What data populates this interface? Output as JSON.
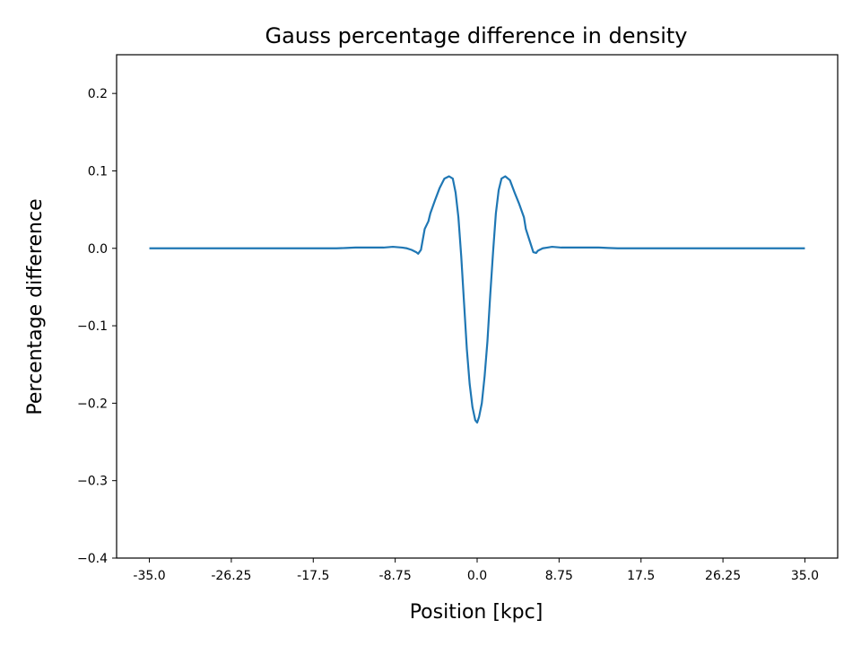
{
  "chart_data": {
    "type": "line",
    "title": "Gauss percentage difference in density",
    "xlabel": "Position [kpc]",
    "ylabel": "Percentage difference",
    "xlim": [
      -38.5,
      38.5
    ],
    "ylim": [
      -0.4,
      0.25
    ],
    "x_ticks": [
      -35.0,
      -26.25,
      -17.5,
      -8.75,
      0.0,
      8.75,
      17.5,
      26.25,
      35.0
    ],
    "x_tick_labels": [
      "-35.0",
      "-26.25",
      "-17.5",
      "-8.75",
      "0.0",
      "8.75",
      "17.5",
      "26.25",
      "35.0"
    ],
    "y_ticks": [
      -0.4,
      -0.3,
      -0.2,
      -0.1,
      0.0,
      0.1,
      0.2
    ],
    "y_tick_labels": [
      "−0.4",
      "−0.3",
      "−0.2",
      "−0.1",
      "0.0",
      "0.1",
      "0.2"
    ],
    "grid": false,
    "line_color": "#1f77b4",
    "series": [
      {
        "x": [
          -35,
          -20,
          -15,
          -14,
          -13,
          -12,
          -11,
          -10,
          -9,
          -8,
          -7.5,
          -7,
          -6.5,
          -6.3,
          -6.0,
          -5.6,
          -5.2,
          -5.0,
          -4.5,
          -4.0,
          -3.5,
          -3.0,
          -2.6,
          -2.3,
          -2.0,
          -1.7,
          -1.4,
          -1.1,
          -0.8,
          -0.5,
          -0.2,
          0.0,
          0.2,
          0.5,
          0.8,
          1.1,
          1.4,
          1.7,
          2.0,
          2.3,
          2.6,
          3.0,
          3.5,
          4.0,
          4.5,
          5.0,
          5.2,
          5.6,
          6.0,
          6.3,
          6.5,
          7,
          7.5,
          8,
          9,
          10,
          11,
          12,
          13,
          14,
          15,
          20,
          35
        ],
        "y": [
          0.0,
          0.0,
          0.0,
          0.0005,
          0.001,
          0.001,
          0.001,
          0.001,
          0.002,
          0.001,
          0.0,
          -0.002,
          -0.005,
          -0.007,
          -0.002,
          0.025,
          0.035,
          0.045,
          0.062,
          0.078,
          0.09,
          0.093,
          0.09,
          0.072,
          0.04,
          -0.01,
          -0.07,
          -0.13,
          -0.175,
          -0.205,
          -0.222,
          -0.225,
          -0.218,
          -0.2,
          -0.165,
          -0.12,
          -0.06,
          -0.005,
          0.045,
          0.075,
          0.09,
          0.093,
          0.088,
          0.072,
          0.057,
          0.04,
          0.025,
          0.01,
          -0.005,
          -0.006,
          -0.003,
          0.0,
          0.001,
          0.002,
          0.001,
          0.001,
          0.001,
          0.001,
          0.001,
          0.0005,
          0.0,
          0.0,
          0.0
        ]
      }
    ]
  }
}
